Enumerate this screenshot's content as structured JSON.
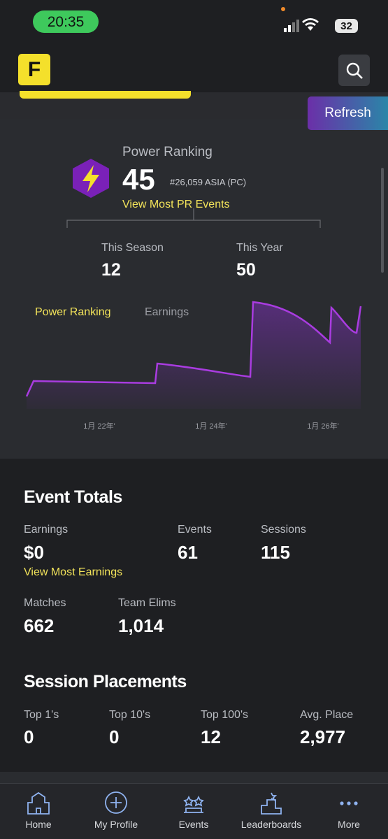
{
  "status_bar": {
    "time": "20:35",
    "battery": "32"
  },
  "header": {
    "logo": "F",
    "refresh": "Refresh"
  },
  "power_ranking": {
    "label": "Power Ranking",
    "value": "45",
    "rank": "#26,059 ASIA (PC)",
    "link": "View Most PR Events",
    "stats": [
      {
        "label": "This Season",
        "value": "12"
      },
      {
        "label": "This Year",
        "value": "50"
      }
    ]
  },
  "chart": {
    "tabs": [
      "Power Ranking",
      "Earnings"
    ],
    "x_labels": [
      "1月 22年'",
      "1月 24年'",
      "1月 26年'"
    ]
  },
  "event_totals": {
    "title": "Event Totals",
    "stats": [
      {
        "label": "Earnings",
        "value": "$0"
      },
      {
        "label": "Events",
        "value": "61"
      },
      {
        "label": "Sessions",
        "value": "115"
      },
      {
        "label": "Matches",
        "value": "662"
      },
      {
        "label": "Team Elims",
        "value": "1,014"
      }
    ],
    "link": "View Most Earnings"
  },
  "session_placements": {
    "title": "Session Placements",
    "stats": [
      {
        "label": "Top 1's",
        "value": "0"
      },
      {
        "label": "Top 10's",
        "value": "0"
      },
      {
        "label": "Top 100's",
        "value": "12"
      },
      {
        "label": "Avg. Place",
        "value": "2,977"
      }
    ]
  },
  "nav": [
    "Home",
    "My Profile",
    "Events",
    "Leaderboards",
    "More"
  ]
}
